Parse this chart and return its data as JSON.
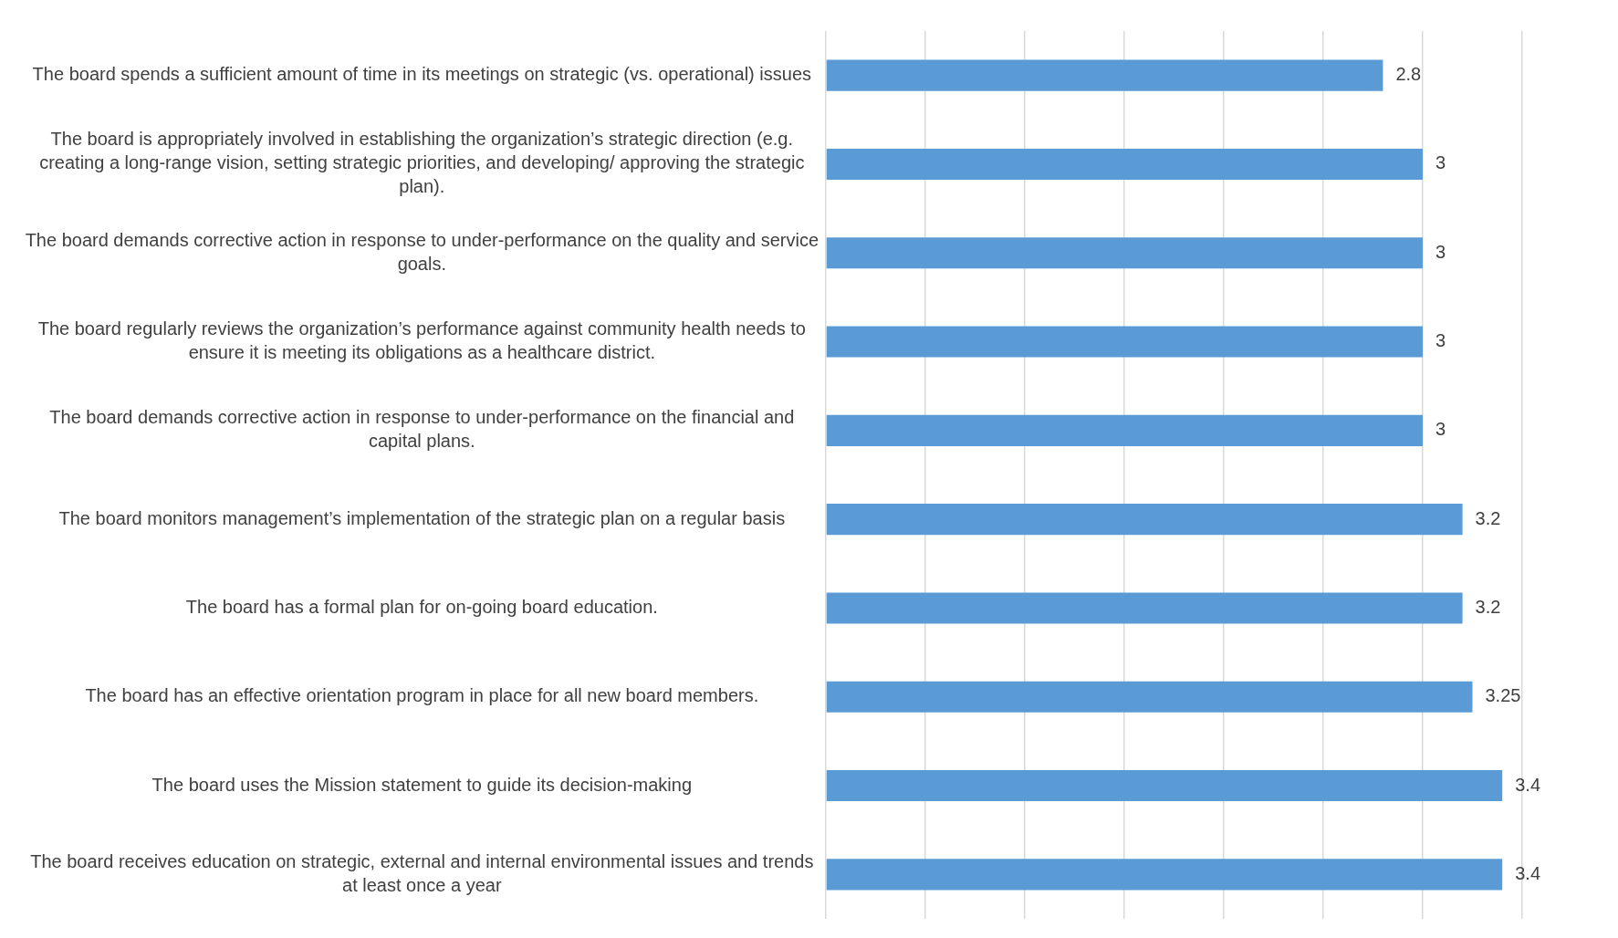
{
  "chart_data": {
    "type": "bar",
    "orientation": "horizontal",
    "categories": [
      "The board spends a sufficient amount of time in its meetings on strategic (vs. operational) issues",
      "The board is appropriately involved in establishing the organization’s strategic direction (e.g. creating a long-range vision, setting strategic priorities, and developing/ approving the strategic plan).",
      "The board demands corrective action in response to under-performance on the quality and service goals.",
      "The board regularly reviews the organization’s performance against community health needs to ensure it is meeting its obligations as a healthcare district.",
      "The board demands corrective action in response to under-performance on the financial and capital plans.",
      "The board monitors management’s implementation of the strategic plan on a regular basis",
      "The board has a formal plan for on-going board education.",
      "The board has an effective orientation program in place for all new board members.",
      "The board uses the Mission statement to guide its decision-making",
      "The board receives education on strategic, external and internal environmental issues and trends at least once a year"
    ],
    "values": [
      2.8,
      3,
      3,
      3,
      3,
      3.2,
      3.2,
      3.25,
      3.4,
      3.4
    ],
    "color": "#5b9bd5",
    "data_labels": true,
    "xlim": [
      0,
      3.5
    ],
    "xticks": [
      {
        "value": 0,
        "label": null
      },
      {
        "value": 0.5,
        "label": null
      },
      {
        "value": 1,
        "label": null
      },
      {
        "value": 1.5,
        "label": null
      },
      {
        "value": 2,
        "label": null
      },
      {
        "value": 2.5,
        "label": null
      },
      {
        "value": 3,
        "label": null
      },
      {
        "value": 3.5,
        "label": null
      }
    ],
    "tick_labels": "y",
    "grid": "x",
    "legend": false
  }
}
